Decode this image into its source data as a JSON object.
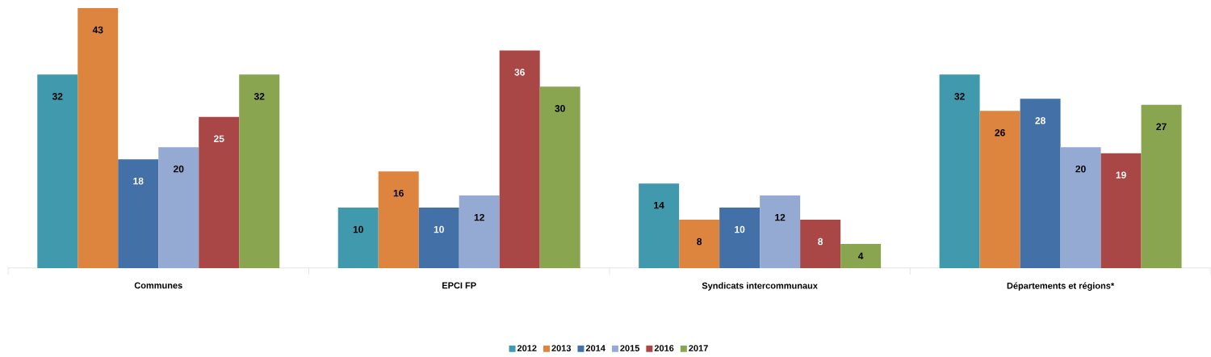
{
  "chart_data": {
    "type": "bar",
    "categories": [
      "Communes",
      "EPCI FP",
      "Syndicats intercommunaux",
      "Départements et régions*"
    ],
    "series": [
      {
        "name": "2012",
        "color": "#4199ad",
        "values": [
          32,
          10,
          14,
          32
        ]
      },
      {
        "name": "2013",
        "color": "#dd843e",
        "values": [
          43,
          16,
          8,
          26
        ]
      },
      {
        "name": "2014",
        "color": "#4370a6",
        "values": [
          18,
          10,
          10,
          28
        ]
      },
      {
        "name": "2015",
        "color": "#94aad3",
        "values": [
          20,
          12,
          12,
          20
        ]
      },
      {
        "name": "2016",
        "color": "#a94747",
        "values": [
          25,
          36,
          8,
          19
        ]
      },
      {
        "name": "2017",
        "color": "#89a550",
        "values": [
          32,
          30,
          4,
          27
        ]
      }
    ],
    "data_labels": true,
    "legend": "bottom"
  }
}
